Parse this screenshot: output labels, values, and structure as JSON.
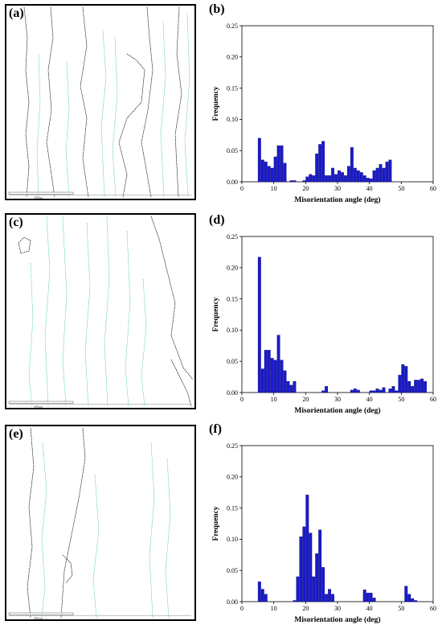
{
  "panels": {
    "a": "(a)",
    "b": "(b)",
    "c": "(c)",
    "d": "(d)",
    "e": "(e)",
    "f": "(f)"
  },
  "scale_bar_text": "300µm",
  "colors": {
    "bar": "#1a1ac8",
    "hagb": "#000000",
    "lagb": "#3cc8a0"
  },
  "chart_data": [
    {
      "panel": "b",
      "type": "bar",
      "xlabel": "Misorientation angle (deg)",
      "ylabel": "Frequency",
      "xlim": [
        0,
        60
      ],
      "ylim": [
        0,
        0.25
      ],
      "xticks": [
        0,
        10,
        20,
        30,
        40,
        50,
        60
      ],
      "yticks": [
        0.0,
        0.05,
        0.1,
        0.15,
        0.2,
        0.25
      ],
      "bin_width": 1,
      "x": [
        5,
        6,
        7,
        8,
        9,
        10,
        11,
        12,
        13,
        14,
        15,
        16,
        17,
        18,
        19,
        20,
        21,
        22,
        23,
        24,
        25,
        26,
        27,
        28,
        29,
        30,
        31,
        32,
        33,
        34,
        35,
        36,
        37,
        38,
        39,
        40,
        41,
        42,
        43,
        44,
        45,
        46,
        47
      ],
      "values": [
        0.07,
        0.035,
        0.032,
        0.025,
        0.022,
        0.04,
        0.058,
        0.058,
        0.03,
        0.0,
        0.002,
        0.002,
        0.0,
        0.0,
        0.002,
        0.008,
        0.012,
        0.01,
        0.045,
        0.06,
        0.065,
        0.01,
        0.01,
        0.022,
        0.012,
        0.018,
        0.015,
        0.01,
        0.025,
        0.055,
        0.022,
        0.018,
        0.015,
        0.01,
        0.006,
        0.005,
        0.018,
        0.022,
        0.028,
        0.022,
        0.032,
        0.035,
        0.0
      ]
    },
    {
      "panel": "d",
      "type": "bar",
      "xlabel": "Misorientation angle (deg)",
      "ylabel": "Frequency",
      "xlim": [
        0,
        60
      ],
      "ylim": [
        0,
        0.25
      ],
      "xticks": [
        0,
        10,
        20,
        30,
        40,
        50,
        60
      ],
      "yticks": [
        0.0,
        0.05,
        0.1,
        0.15,
        0.2,
        0.25
      ],
      "bin_width": 1,
      "x": [
        5,
        6,
        7,
        8,
        9,
        10,
        11,
        12,
        13,
        14,
        15,
        16,
        17,
        18,
        19,
        20,
        21,
        22,
        23,
        24,
        25,
        26,
        27,
        28,
        29,
        30,
        31,
        32,
        33,
        34,
        35,
        36,
        37,
        38,
        39,
        40,
        41,
        42,
        43,
        44,
        45,
        46,
        47,
        48,
        49,
        50,
        51,
        52,
        53,
        54,
        55,
        56,
        57
      ],
      "values": [
        0.217,
        0.038,
        0.068,
        0.068,
        0.055,
        0.052,
        0.092,
        0.052,
        0.035,
        0.018,
        0.012,
        0.018,
        0.0,
        0.0,
        0.0,
        0.0,
        0.0,
        0.0,
        0.0,
        0.0,
        0.003,
        0.01,
        0.0,
        0.0,
        0.0,
        0.0,
        0.0,
        0.0,
        0.0,
        0.004,
        0.006,
        0.004,
        0.0,
        0.0,
        0.0,
        0.003,
        0.003,
        0.006,
        0.004,
        0.008,
        0.0,
        0.006,
        0.01,
        0.003,
        0.028,
        0.045,
        0.042,
        0.018,
        0.01,
        0.02,
        0.02,
        0.022,
        0.018
      ]
    },
    {
      "panel": "f",
      "type": "bar",
      "xlabel": "Misorientation angle (deg)",
      "ylabel": "Frequency",
      "xlim": [
        0,
        60
      ],
      "ylim": [
        0,
        0.25
      ],
      "xticks": [
        0,
        10,
        20,
        30,
        40,
        50,
        60
      ],
      "yticks": [
        0.0,
        0.05,
        0.1,
        0.15,
        0.2,
        0.25
      ],
      "bin_width": 1,
      "x": [
        5,
        6,
        7,
        8,
        9,
        10,
        11,
        12,
        13,
        14,
        15,
        16,
        17,
        18,
        19,
        20,
        21,
        22,
        23,
        24,
        25,
        26,
        27,
        28,
        29,
        30,
        31,
        32,
        33,
        34,
        35,
        36,
        37,
        38,
        39,
        40,
        41,
        42,
        43,
        44,
        45,
        46,
        47,
        48,
        49,
        50,
        51,
        52,
        53,
        54,
        55
      ],
      "values": [
        0.032,
        0.02,
        0.012,
        0.0,
        0.0,
        0.0,
        0.0,
        0.0,
        0.0,
        0.0,
        0.0,
        0.002,
        0.04,
        0.104,
        0.12,
        0.171,
        0.11,
        0.04,
        0.077,
        0.115,
        0.055,
        0.012,
        0.02,
        0.012,
        0.0,
        0.0,
        0.0,
        0.0,
        0.0,
        0.0,
        0.0,
        0.0,
        0.0,
        0.019,
        0.014,
        0.014,
        0.006,
        0.0,
        0.0,
        0.0,
        0.0,
        0.0,
        0.0,
        0.0,
        0.0,
        0.0,
        0.025,
        0.012,
        0.005,
        0.002,
        0.0
      ]
    }
  ]
}
